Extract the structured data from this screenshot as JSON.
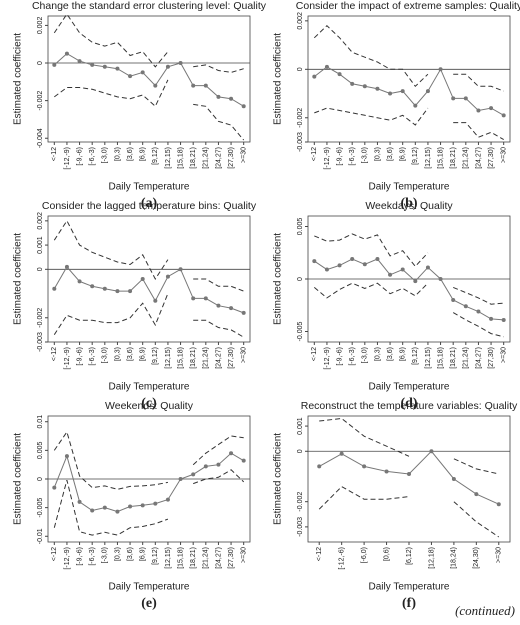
{
  "footnote": "(continued)",
  "chart_data": [
    {
      "type": "line",
      "title": "Change the standard error clustering level: Quality",
      "label": "(a)",
      "x_label": "Daily Temperature",
      "y_label": "Estimated coefficient",
      "categories": [
        "<-12",
        "[-12,-9)",
        "[-9,-6)",
        "[-6,-3)",
        "[-3,0)",
        "[0,3)",
        "[3,6)",
        "[6,9)",
        "[9,12)",
        "[12,15)",
        "[15,18)",
        "[18,21)",
        "[21,24)",
        "[24,27)",
        "[27,30)",
        ">=30"
      ],
      "ylim": [
        -0.0042,
        0.0025
      ],
      "yticks": [
        0.002,
        0,
        -0.002,
        -0.004
      ],
      "series": [
        {
          "color": "#777777",
          "marker": true,
          "values": [
            -0.0001,
            0.0005,
            0.0001,
            -0.0001,
            -0.0002,
            -0.0003,
            -0.0007,
            -0.0005,
            -0.0012,
            -0.0002,
            0,
            -0.0012,
            -0.0012,
            -0.0018,
            -0.0019,
            -0.0023
          ]
        },
        {
          "color": "#333333",
          "dashed": true,
          "values": [
            0.0016,
            0.0026,
            0.0016,
            0.0011,
            0.0009,
            0.0011,
            0.0004,
            0.0006,
            -0.0002,
            0.0006,
            null,
            -0.0002,
            -0.0001,
            -0.0004,
            -0.0005,
            -0.0003
          ]
        },
        {
          "color": "#333333",
          "dashed": true,
          "values": [
            -0.0018,
            -0.0013,
            -0.0013,
            -0.0014,
            -0.0016,
            -0.0018,
            -0.0019,
            -0.0017,
            -0.0023,
            -0.0009,
            null,
            -0.0022,
            -0.0023,
            -0.0031,
            -0.0033,
            -0.0041
          ]
        }
      ]
    },
    {
      "type": "line",
      "title": "Consider the impact of extreme samples: Quality",
      "label": "(b)",
      "x_label": "Daily Temperature",
      "y_label": "Estimated coefficient",
      "categories": [
        "<-12",
        "[-12,-9)",
        "[-9,-6)",
        "[-6,-3)",
        "[-3,0)",
        "[0,3)",
        "[3,6)",
        "[6,9)",
        "[9,12)",
        "[12,15)",
        "[15,18)",
        "[18,21)",
        "[21,24)",
        "[24,27)",
        "[27,30)",
        ">=30"
      ],
      "ylim": [
        -0.003,
        0.0022
      ],
      "yticks": [
        0.002,
        0,
        -0.002,
        -0.003
      ],
      "series": [
        {
          "color": "#777777",
          "marker": true,
          "values": [
            -0.0003,
            0.0001,
            -0.0002,
            -0.0006,
            -0.0007,
            -0.0008,
            -0.001,
            -0.0009,
            -0.0015,
            -0.0009,
            0,
            -0.0012,
            -0.0012,
            -0.0017,
            -0.0016,
            -0.0019
          ]
        },
        {
          "color": "#333333",
          "dashed": true,
          "values": [
            0.0013,
            0.0018,
            0.0013,
            0.0007,
            0.0005,
            0.0003,
            0,
            0,
            -0.0007,
            -0.0002,
            null,
            -0.0002,
            -0.0002,
            -0.0007,
            -0.0007,
            -0.0009
          ]
        },
        {
          "color": "#333333",
          "dashed": true,
          "values": [
            -0.0018,
            -0.0016,
            -0.0017,
            -0.0018,
            -0.0019,
            -0.002,
            -0.0021,
            -0.0019,
            -0.0023,
            -0.0016,
            null,
            -0.0022,
            -0.0022,
            -0.0028,
            -0.0026,
            -0.0029
          ]
        }
      ]
    },
    {
      "type": "line",
      "title": "Consider the lagged temperature bins: Quality",
      "label": "(c)",
      "x_label": "Daily Temperature",
      "y_label": "Estimated coefficient",
      "categories": [
        "<-12",
        "[-12,-9)",
        "[-9,-6)",
        "[-6,-3)",
        "[-3,0)",
        "[0,3)",
        "[3,6)",
        "[6,9)",
        "[9,12)",
        "[12,15)",
        "[15,18)",
        "[18,21)",
        "[21,24)",
        "[24,27)",
        "[27,30)",
        ">=30"
      ],
      "ylim": [
        -0.003,
        0.0022
      ],
      "yticks": [
        0.002,
        0.001,
        0,
        -0.002,
        -0.003
      ],
      "series": [
        {
          "color": "#777777",
          "marker": true,
          "values": [
            -0.0008,
            0.0001,
            -0.0005,
            -0.0007,
            -0.0008,
            -0.0009,
            -0.0009,
            -0.0004,
            -0.0013,
            -0.0003,
            0,
            -0.0012,
            -0.0012,
            -0.0015,
            -0.0016,
            -0.0018
          ]
        },
        {
          "color": "#333333",
          "dashed": true,
          "values": [
            0.0012,
            0.002,
            0.001,
            0.0007,
            0.0005,
            0.0003,
            0.0002,
            0.0006,
            -0.0004,
            0.0004,
            null,
            -0.0004,
            -0.0004,
            -0.0007,
            -0.0007,
            -0.0009
          ]
        },
        {
          "color": "#333333",
          "dashed": true,
          "values": [
            -0.0027,
            -0.0019,
            -0.0021,
            -0.0021,
            -0.0022,
            -0.0022,
            -0.002,
            -0.0014,
            -0.0023,
            -0.001,
            null,
            -0.0021,
            -0.0021,
            -0.0024,
            -0.0025,
            -0.0028
          ]
        }
      ]
    },
    {
      "type": "line",
      "title": "Weekdays: Quality",
      "label": "(d)",
      "x_label": "Daily Temperature",
      "y_label": "Estimated coefficient",
      "categories": [
        "<-12",
        "[-12,-9)",
        "[-9,-6)",
        "[-6,-3)",
        "[-3,0)",
        "[0,3)",
        "[3,6)",
        "[6,9)",
        "[9,12)",
        "[12,15)",
        "[15,18)",
        "[18,21)",
        "[21,24)",
        "[24,27)",
        "[27,30)",
        ">=30"
      ],
      "ylim": [
        -0.006,
        0.006
      ],
      "yticks": [
        0.005,
        0,
        -0.005
      ],
      "series": [
        {
          "color": "#777777",
          "marker": true,
          "values": [
            0.0017,
            0.0009,
            0.0013,
            0.0019,
            0.0014,
            0.0019,
            0.0004,
            0.0009,
            -0.0002,
            0.0011,
            0,
            -0.002,
            -0.0026,
            -0.0031,
            -0.0038,
            -0.0039
          ]
        },
        {
          "color": "#333333",
          "dashed": true,
          "values": [
            0.0041,
            0.0036,
            0.0037,
            0.0043,
            0.0038,
            0.0042,
            0.0022,
            0.0027,
            0.0012,
            0.0025,
            null,
            -0.0008,
            -0.0013,
            -0.0018,
            -0.0024,
            -0.0023
          ]
        },
        {
          "color": "#333333",
          "dashed": true,
          "values": [
            -0.0008,
            -0.0018,
            -0.001,
            -0.0004,
            -0.0009,
            -0.0004,
            -0.0014,
            -0.0009,
            -0.0016,
            -0.0004,
            null,
            -0.0032,
            -0.0039,
            -0.0045,
            -0.0052,
            -0.0055
          ]
        }
      ]
    },
    {
      "type": "line",
      "title": "Weekends: Quality",
      "label": "(e)",
      "x_label": "Daily Temperature",
      "y_label": "Estimated coefficient",
      "categories": [
        "<-12",
        "[-12,-9)",
        "[-9,-6)",
        "[-6,-3)",
        "[-3,0)",
        "[0,3)",
        "[3,6)",
        "[6,9)",
        "[9,12)",
        "[12,15)",
        "[15,18)",
        "[18,21)",
        "[21,24)",
        "[24,27)",
        "[27,30)",
        ">=30"
      ],
      "ylim": [
        -0.011,
        0.011
      ],
      "yticks": [
        0.01,
        0.005,
        0,
        -0.005,
        -0.01
      ],
      "series": [
        {
          "color": "#777777",
          "marker": true,
          "values": [
            -0.0015,
            0.004,
            -0.004,
            -0.0055,
            -0.005,
            -0.0057,
            -0.0048,
            -0.0046,
            -0.0043,
            -0.0036,
            0,
            0.0008,
            0.0022,
            0.0025,
            0.0045,
            0.0032
          ]
        },
        {
          "color": "#333333",
          "dashed": true,
          "values": [
            0.005,
            0.0082,
            0.0005,
            -0.0015,
            -0.0012,
            -0.0018,
            -0.0013,
            -0.0012,
            -0.001,
            -0.0006,
            null,
            0.0025,
            0.0045,
            0.006,
            0.0075,
            0.0072
          ]
        },
        {
          "color": "#333333",
          "dashed": true,
          "values": [
            -0.0085,
            -0.0002,
            -0.0092,
            -0.0098,
            -0.0093,
            -0.0098,
            -0.0085,
            -0.0083,
            -0.0078,
            -0.007,
            null,
            -0.0008,
            0,
            0.0003,
            0.0016,
            -0.0005
          ]
        }
      ]
    },
    {
      "type": "line",
      "title": "Reconstruct the temperature variables: Quality",
      "label": "(f)",
      "x_label": "Daily Temperature",
      "y_label": "Estimated coefficient",
      "categories": [
        "<-12",
        "[-12,-6)",
        "[-6,0)",
        "[0,6)",
        "[6,12)",
        "[12,18)",
        "[18,24)",
        "[24,30)",
        ">=30"
      ],
      "ylim": [
        -0.0036,
        0.0014
      ],
      "yticks": [
        0.001,
        0,
        -0.002,
        -0.003
      ],
      "series": [
        {
          "color": "#777777",
          "marker": true,
          "values": [
            -0.0006,
            -0.0001,
            -0.0006,
            -0.0008,
            -0.0009,
            0,
            -0.0011,
            -0.0017,
            -0.0021
          ]
        },
        {
          "color": "#333333",
          "dashed": true,
          "values": [
            0.0012,
            0.0013,
            0.0006,
            0.0002,
            -0.0002,
            null,
            -0.0003,
            -0.0007,
            -0.0009
          ]
        },
        {
          "color": "#333333",
          "dashed": true,
          "values": [
            -0.0023,
            -0.0014,
            -0.0019,
            -0.0019,
            -0.0018,
            null,
            -0.002,
            -0.0028,
            -0.0034
          ]
        }
      ]
    }
  ]
}
